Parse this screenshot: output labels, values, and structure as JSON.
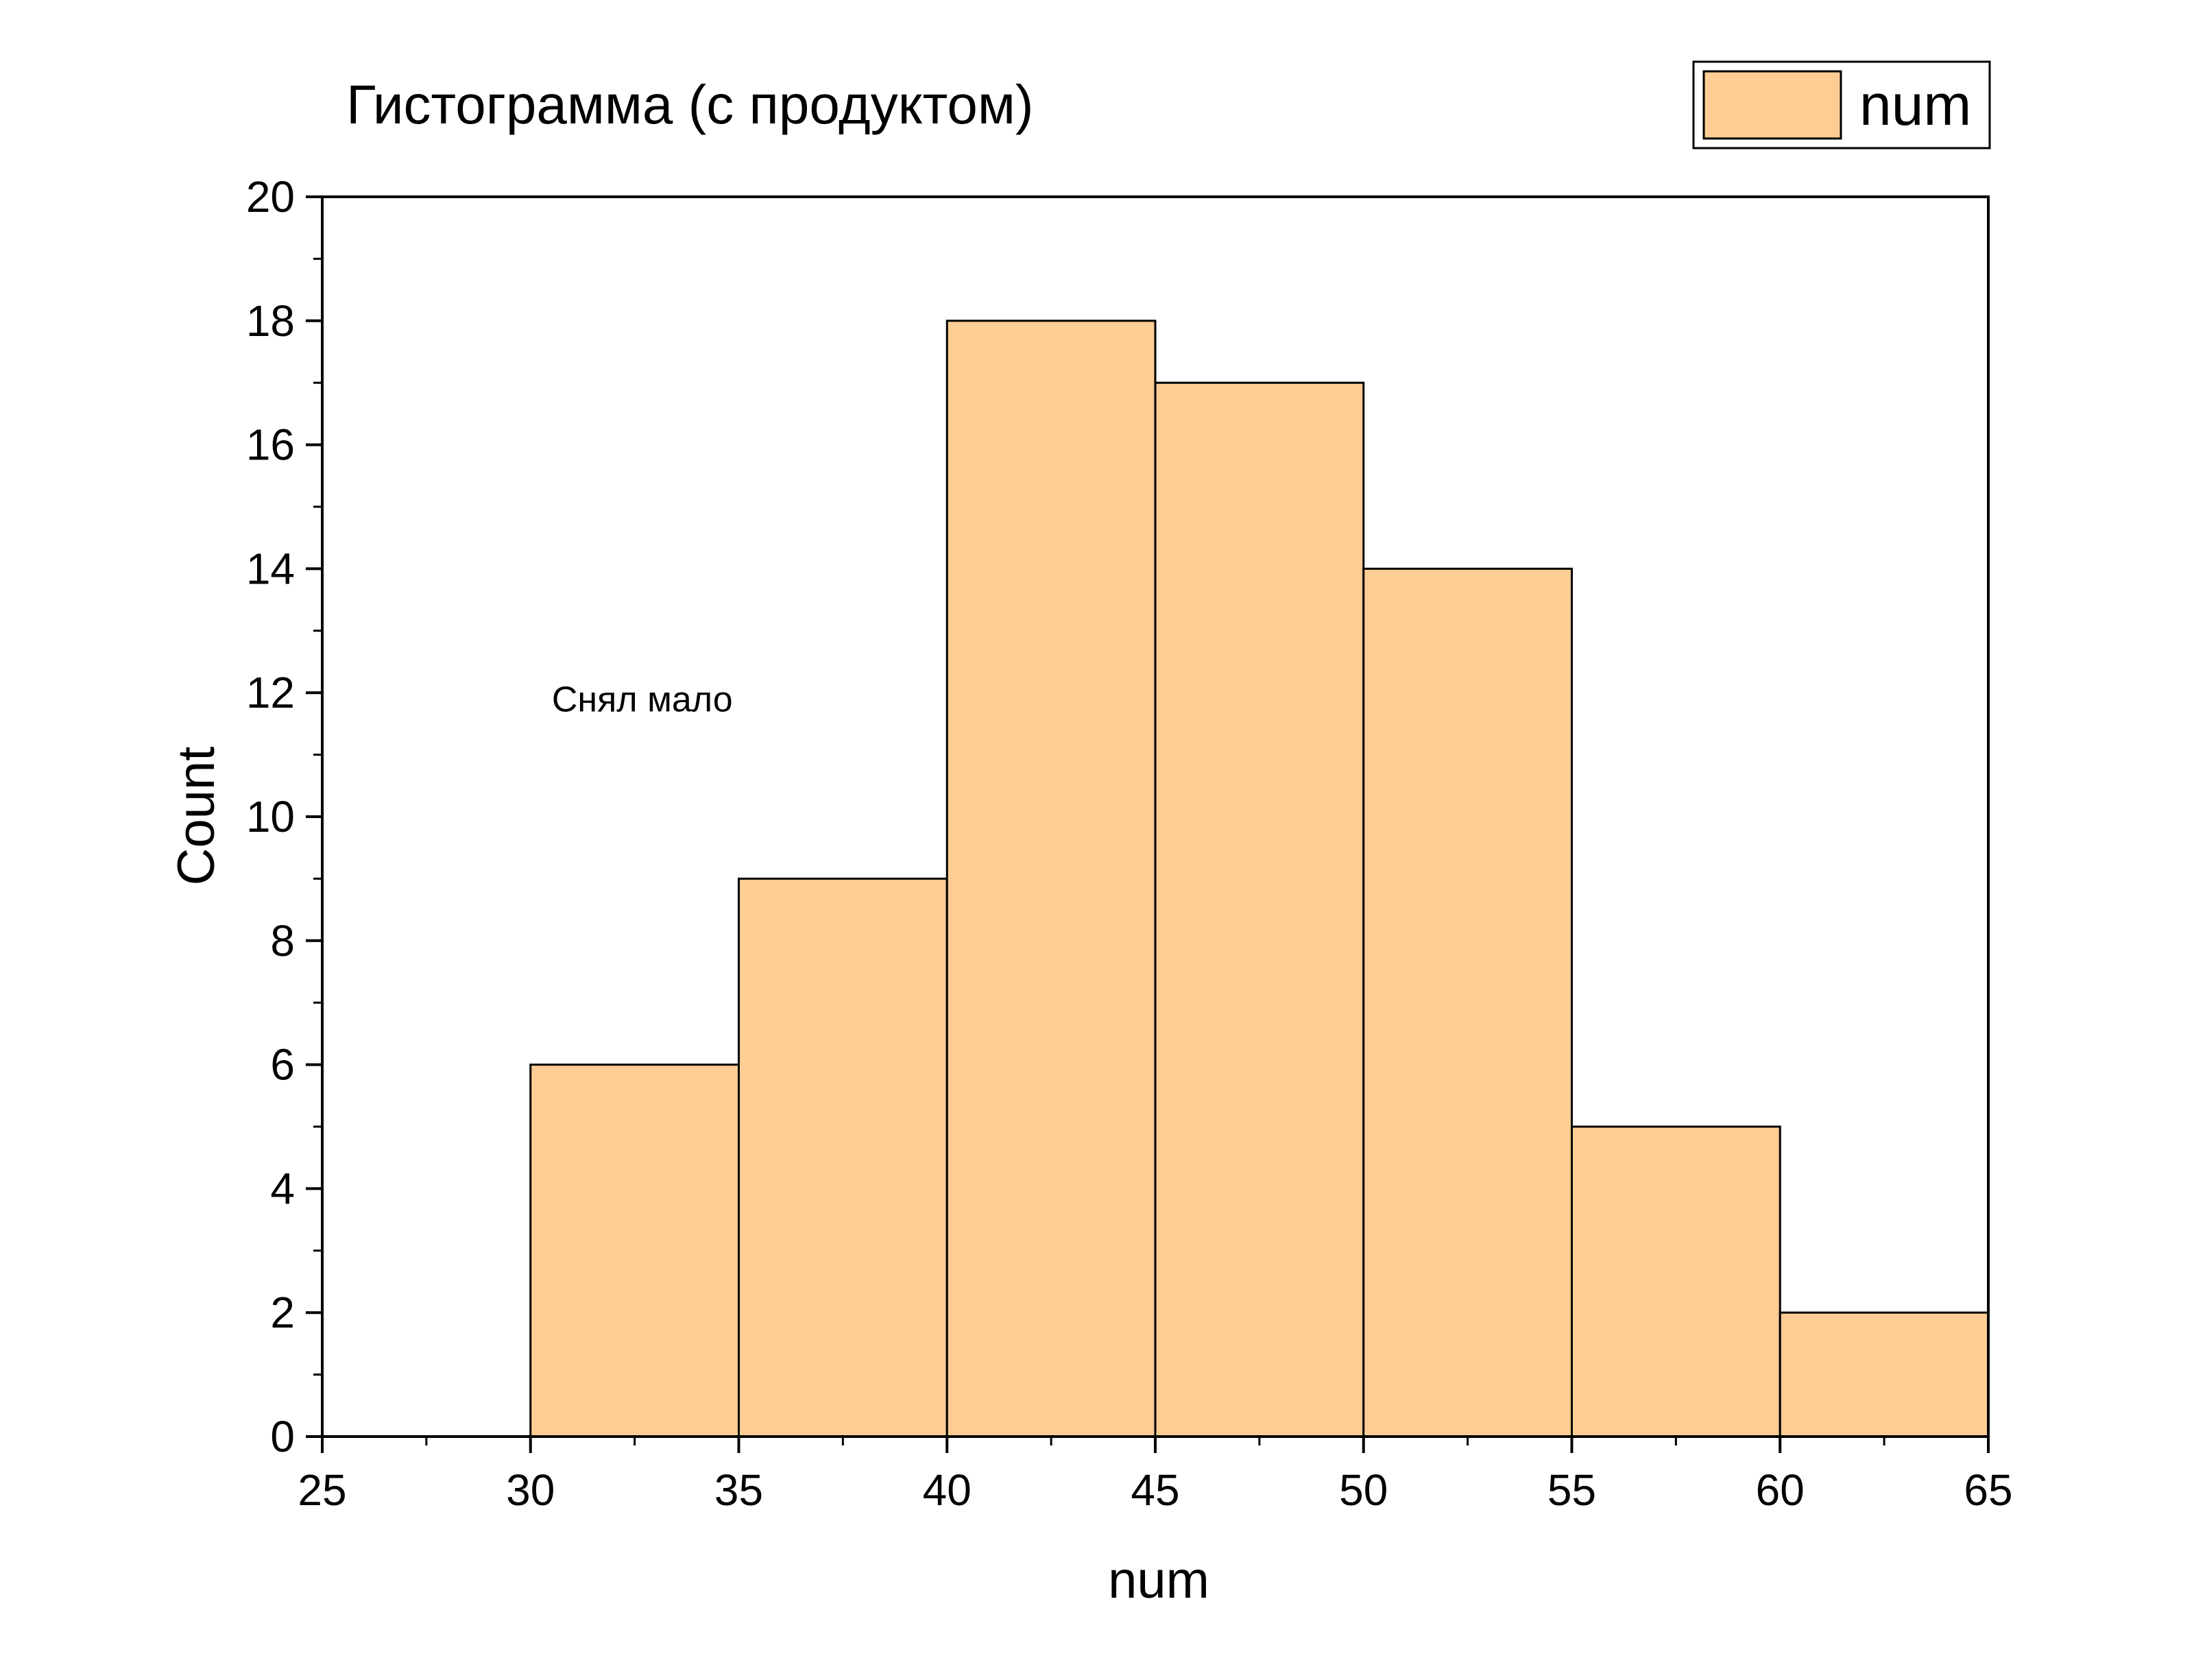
{
  "chart_data": {
    "type": "bar",
    "subtype": "histogram",
    "title": "Гистограмма (с продуктом)",
    "xlabel": "num",
    "ylabel": "Count",
    "xlim": [
      25,
      65
    ],
    "ylim": [
      0,
      20
    ],
    "x_ticks": [
      25,
      30,
      35,
      40,
      45,
      50,
      55,
      60,
      65
    ],
    "y_ticks": [
      0,
      2,
      4,
      6,
      8,
      10,
      12,
      14,
      16,
      18,
      20
    ],
    "bin_edges": [
      30,
      35,
      40,
      45,
      50,
      55,
      60,
      65
    ],
    "values": [
      6,
      9,
      18,
      17,
      14,
      5,
      2
    ],
    "series": [
      {
        "name": "num",
        "color": "#FDCD94",
        "values": [
          6,
          9,
          18,
          17,
          14,
          5,
          2
        ]
      }
    ],
    "legend": {
      "position": "top-right",
      "entries": [
        "num"
      ]
    },
    "annotation": {
      "text": "Снял мало",
      "x": 31.5,
      "y": 11.7
    },
    "grid": false,
    "bar_fill": "#FDCD94",
    "bar_edge": "#000000"
  }
}
